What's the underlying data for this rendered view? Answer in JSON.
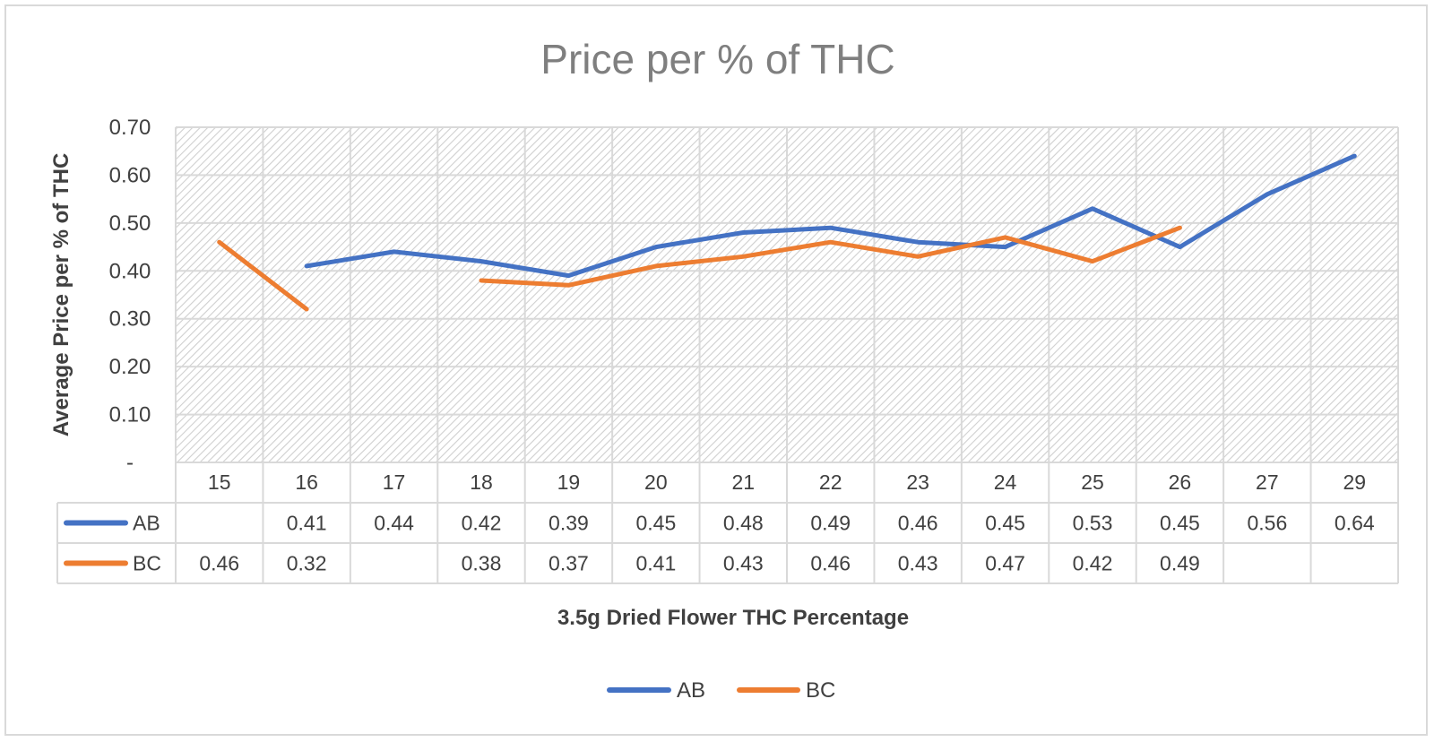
{
  "chart_data": {
    "type": "line",
    "title": "Price per % of THC",
    "xlabel": "3.5g Dried Flower THC  Percentage",
    "ylabel": "Average Price per % of THC",
    "categories": [
      "15",
      "16",
      "17",
      "18",
      "19",
      "20",
      "21",
      "22",
      "23",
      "24",
      "25",
      "26",
      "27",
      "29"
    ],
    "ylim": [
      0,
      0.7
    ],
    "yticks": [
      "-",
      "0.10",
      "0.20",
      "0.30",
      "0.40",
      "0.50",
      "0.60",
      "0.70"
    ],
    "grid": true,
    "data_table": true,
    "legend_position": "bottom",
    "series": [
      {
        "name": "AB",
        "color": "#4472c4",
        "values": [
          null,
          0.41,
          0.44,
          0.42,
          0.39,
          0.45,
          0.48,
          0.49,
          0.46,
          0.45,
          0.53,
          0.45,
          0.56,
          0.64
        ],
        "labels": [
          "",
          "0.41",
          "0.44",
          "0.42",
          "0.39",
          "0.45",
          "0.48",
          "0.49",
          "0.46",
          "0.45",
          "0.53",
          "0.45",
          "0.56",
          "0.64"
        ]
      },
      {
        "name": "BC",
        "color": "#ed7d31",
        "values": [
          0.46,
          0.32,
          null,
          0.38,
          0.37,
          0.41,
          0.43,
          0.46,
          0.43,
          0.47,
          0.42,
          0.49,
          null,
          null
        ],
        "labels": [
          "0.46",
          "0.32",
          "",
          "0.38",
          "0.37",
          "0.41",
          "0.43",
          "0.46",
          "0.43",
          "0.47",
          "0.42",
          "0.49",
          "",
          ""
        ]
      }
    ]
  }
}
